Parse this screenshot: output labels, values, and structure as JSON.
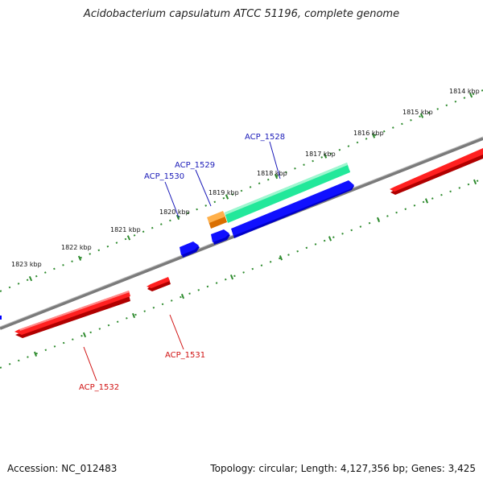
{
  "title": "Acidobacterium capsulatum ATCC 51196, complete genome",
  "footer": {
    "accession": "Accession: NC_012483",
    "summary": "Topology: circular; Length: 4,127,356 bp; Genes: 3,425"
  },
  "colors": {
    "backbone": "#808080",
    "tick_dots": "#2e8b2e",
    "plus_strand_label": "#1a1ab8",
    "minus_strand_label": "#d01010",
    "cds_plus": "#0000ff",
    "cds_minus": "#ff0000",
    "rna_green": "#22e89a",
    "rna_orange": "#f28c00"
  },
  "scale_labels": [
    "1814 kbp",
    "1815 kbp",
    "1816 kbp",
    "1817 kbp",
    "1818 kbp",
    "1819 kbp",
    "1820 kbp",
    "1821 kbp",
    "1822 kbp",
    "1823 kbp"
  ],
  "genes": [
    {
      "name": "ACP_1528",
      "strand": "+"
    },
    {
      "name": "ACP_1529",
      "strand": "+"
    },
    {
      "name": "ACP_1530",
      "strand": "+"
    },
    {
      "name": "ACP_1531",
      "strand": "-"
    },
    {
      "name": "ACP_1532",
      "strand": "-"
    }
  ]
}
